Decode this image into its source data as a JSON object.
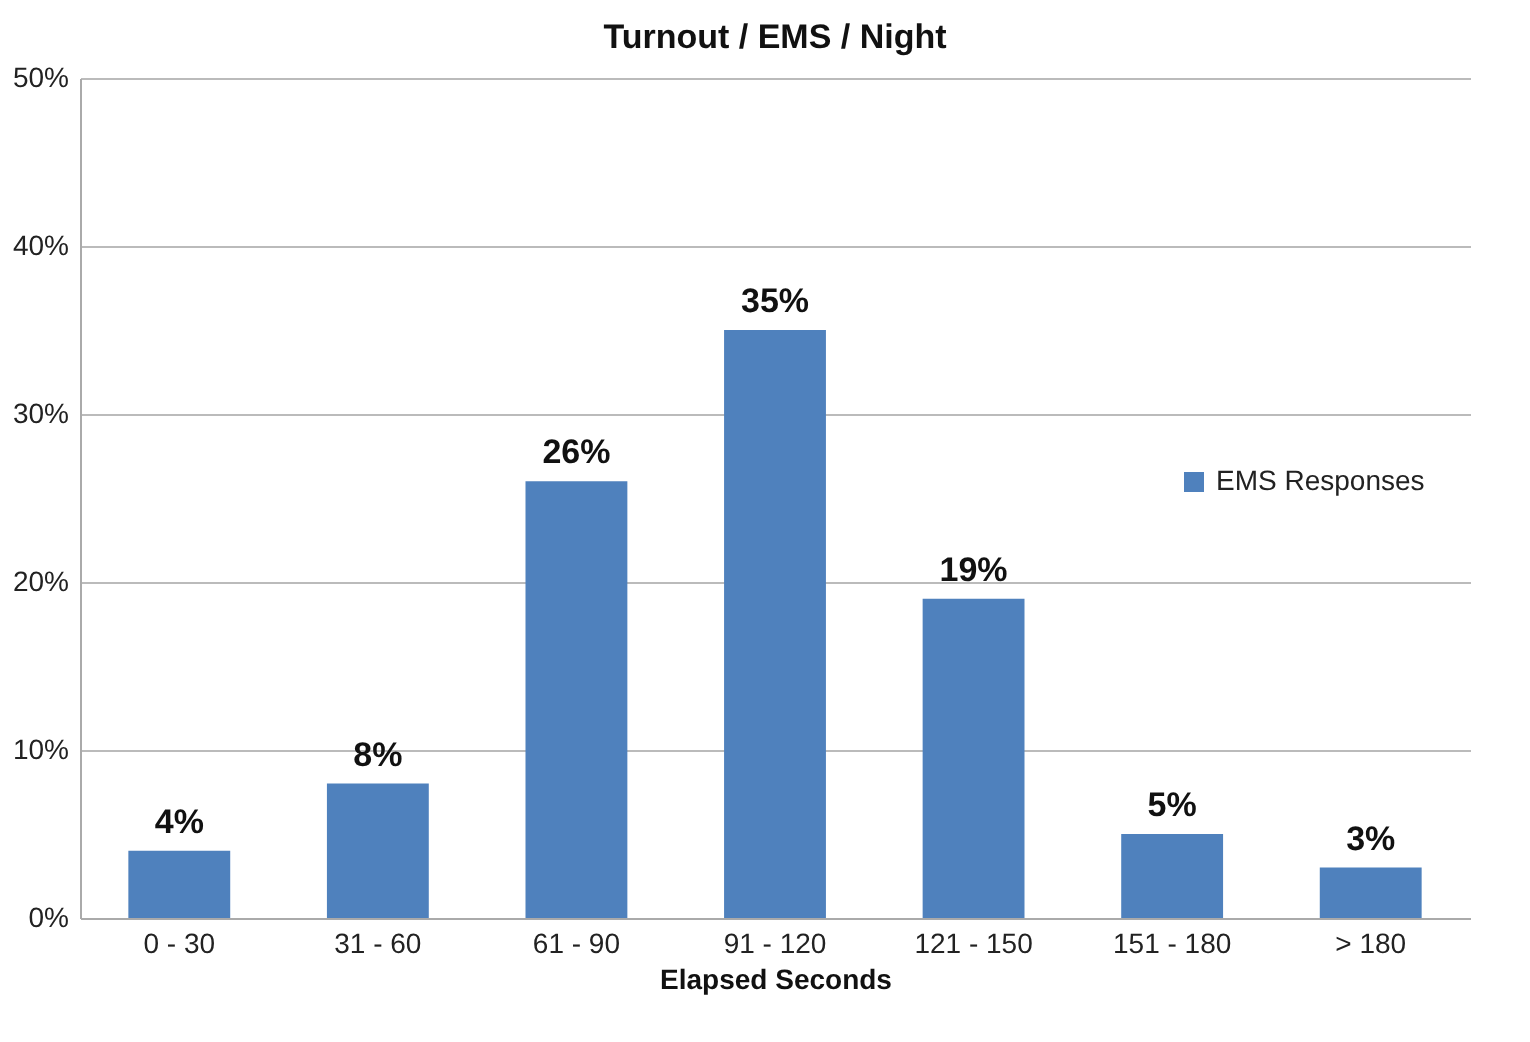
{
  "chart_data": {
    "type": "bar",
    "title": "Turnout / EMS / Night",
    "xlabel": "Elapsed Seconds",
    "categories": [
      "0 - 30",
      "31 - 60",
      "61 - 90",
      "91 - 120",
      "121 - 150",
      "151 - 180",
      "> 180"
    ],
    "series": [
      {
        "name": "EMS Responses",
        "color": "#4f81bd",
        "values": [
          4,
          8,
          26,
          35,
          19,
          5,
          3
        ],
        "value_labels": [
          "4%",
          "8%",
          "26%",
          "35%",
          "19%",
          "5%",
          "3%"
        ]
      }
    ],
    "ylim": [
      0,
      50
    ],
    "yticks": [
      {
        "value": 0,
        "label": "0%"
      },
      {
        "value": 10,
        "label": "10%"
      },
      {
        "value": 20,
        "label": "20%"
      },
      {
        "value": 30,
        "label": "30%"
      },
      {
        "value": 40,
        "label": "40%"
      },
      {
        "value": 50,
        "label": "50%"
      }
    ],
    "grid": "y",
    "legend": "right"
  }
}
